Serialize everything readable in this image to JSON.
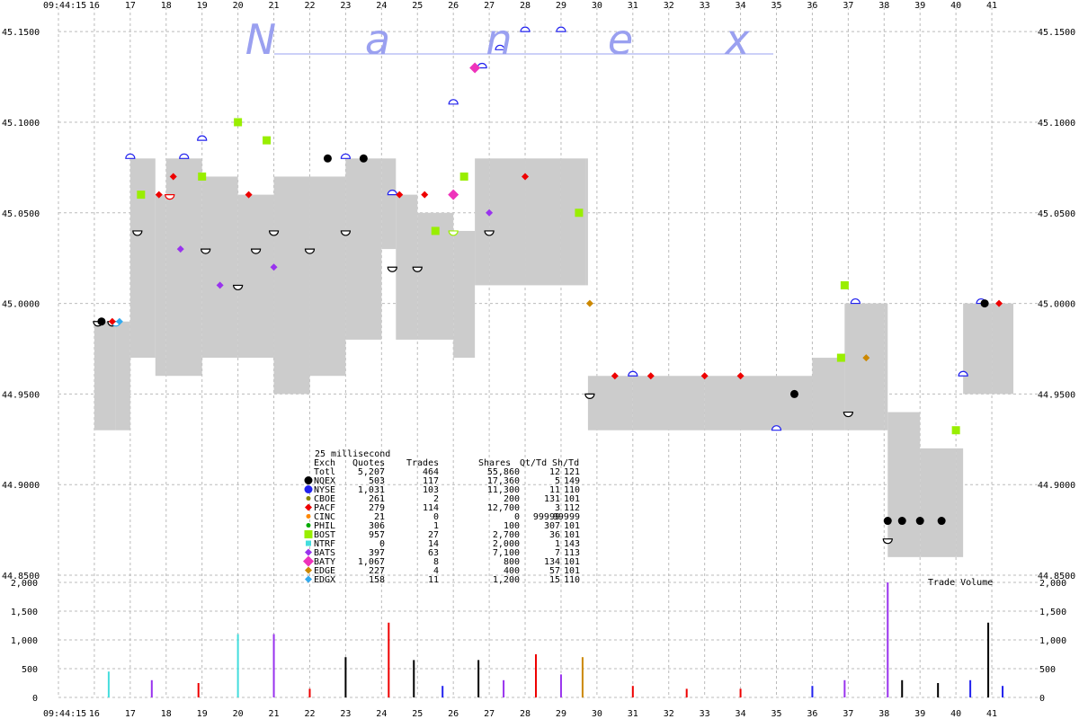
{
  "chart_data": {
    "type": "scatter",
    "brand": "Nanex",
    "brand_letters": [
      "N",
      "a",
      "n",
      "e",
      "x"
    ],
    "start_time": "09:44:15",
    "time_ticks": [
      "16",
      "17",
      "18",
      "19",
      "20",
      "21",
      "22",
      "23",
      "24",
      "25",
      "26",
      "27",
      "28",
      "29",
      "30",
      "31",
      "32",
      "33",
      "34",
      "35",
      "36",
      "37",
      "38",
      "39",
      "40",
      "41"
    ],
    "y_ticks": [
      "45.1500",
      "45.1000",
      "45.0500",
      "45.0000",
      "44.9500",
      "44.9000",
      "44.8500"
    ],
    "ylim": [
      44.85,
      45.16
    ],
    "volume_ticks": [
      "2,000",
      "1,500",
      "1,000",
      "500",
      "0"
    ],
    "volume_ylim": [
      0,
      2000
    ],
    "volume_label": "Trade Volume",
    "grid": true,
    "stats_table": {
      "interval": "25 millisecond",
      "headers": [
        "Exch",
        "Quotes",
        "Trades",
        "Shares",
        "Qt/Td",
        "Sh/Td"
      ],
      "total": {
        "exch": "Totl",
        "quotes": "5,207",
        "trades": "464",
        "shares": "55,860",
        "qt_td": "12",
        "sh_td": "121"
      },
      "rows": [
        {
          "exch": "NQEX",
          "quotes": "503",
          "trades": "117",
          "shares": "17,360",
          "qt_td": "5",
          "sh_td": "149",
          "color": "#000000",
          "marker": "circle-lg"
        },
        {
          "exch": "NYSE",
          "quotes": "1,031",
          "trades": "103",
          "shares": "11,300",
          "qt_td": "11",
          "sh_td": "110",
          "color": "#2222ee",
          "marker": "circle-lg"
        },
        {
          "exch": "CBOE",
          "quotes": "261",
          "trades": "2",
          "shares": "200",
          "qt_td": "131",
          "sh_td": "101",
          "color": "#888800",
          "marker": "dot"
        },
        {
          "exch": "PACF",
          "quotes": "279",
          "trades": "114",
          "shares": "12,700",
          "qt_td": "3",
          "sh_td": "112",
          "color": "#ee0000",
          "marker": "diamond"
        },
        {
          "exch": "CINC",
          "quotes": "21",
          "trades": "0",
          "shares": "0",
          "qt_td": "99999",
          "sh_td": "99999",
          "color": "#ff8800",
          "marker": "dot"
        },
        {
          "exch": "PHIL",
          "quotes": "306",
          "trades": "1",
          "shares": "100",
          "qt_td": "307",
          "sh_td": "101",
          "color": "#00aa00",
          "marker": "dot"
        },
        {
          "exch": "BOST",
          "quotes": "957",
          "trades": "27",
          "shares": "2,700",
          "qt_td": "36",
          "sh_td": "101",
          "color": "#99ee00",
          "marker": "square"
        },
        {
          "exch": "NTRF",
          "quotes": "0",
          "trades": "14",
          "shares": "2,000",
          "qt_td": "1",
          "sh_td": "143",
          "color": "#44dddd",
          "marker": "square-sm"
        },
        {
          "exch": "BATS",
          "quotes": "397",
          "trades": "63",
          "shares": "7,100",
          "qt_td": "7",
          "sh_td": "113",
          "color": "#9933ee",
          "marker": "diamond"
        },
        {
          "exch": "BATY",
          "quotes": "1,067",
          "trades": "8",
          "shares": "800",
          "qt_td": "134",
          "sh_td": "101",
          "color": "#ee33bb",
          "marker": "diamond-lg"
        },
        {
          "exch": "EDGE",
          "quotes": "227",
          "trades": "4",
          "shares": "400",
          "qt_td": "57",
          "sh_td": "101",
          "color": "#cc8800",
          "marker": "diamond"
        },
        {
          "exch": "EDGX",
          "quotes": "158",
          "trades": "11",
          "shares": "1,200",
          "qt_td": "15",
          "sh_td": "110",
          "color": "#33aaee",
          "marker": "diamond"
        }
      ]
    },
    "nbbo_band": [
      [
        16.0,
        44.93,
        44.99
      ],
      [
        16.6,
        44.93,
        44.99
      ],
      [
        17.0,
        44.97,
        45.08
      ],
      [
        17.7,
        44.96,
        45.06
      ],
      [
        18.0,
        44.96,
        45.08
      ],
      [
        19.0,
        44.97,
        45.07
      ],
      [
        20.0,
        44.97,
        45.06
      ],
      [
        21.0,
        44.95,
        45.07
      ],
      [
        22.0,
        44.96,
        45.07
      ],
      [
        23.0,
        44.98,
        45.08
      ],
      [
        24.0,
        45.03,
        45.08
      ],
      [
        24.4,
        44.98,
        45.06
      ],
      [
        25.0,
        44.98,
        45.05
      ],
      [
        26.0,
        44.97,
        45.04
      ],
      [
        26.6,
        45.01,
        45.08
      ],
      [
        27.0,
        45.01,
        45.08
      ],
      [
        28.0,
        45.01,
        45.08
      ],
      [
        29.0,
        45.01,
        45.08
      ],
      [
        29.7,
        45.01,
        45.08
      ],
      [
        29.75,
        44.93,
        44.96
      ],
      [
        31.0,
        44.93,
        44.96
      ],
      [
        33.0,
        44.93,
        44.96
      ],
      [
        35.0,
        44.93,
        44.96
      ],
      [
        36.0,
        44.93,
        44.97
      ],
      [
        36.9,
        44.93,
        45.0
      ],
      [
        38.0,
        44.93,
        45.0
      ],
      [
        38.1,
        44.86,
        44.94
      ],
      [
        39.0,
        44.86,
        44.92
      ],
      [
        40.0,
        44.86,
        44.92
      ],
      [
        40.2,
        44.95,
        45.0
      ],
      [
        41.0,
        44.95,
        45.0
      ],
      [
        41.6,
        44.91,
        45.0
      ]
    ],
    "bids": [
      {
        "t": 16.1,
        "p": 44.99,
        "ex": "NQEX"
      },
      {
        "t": 16.5,
        "p": 44.99,
        "ex": "NQEX"
      },
      {
        "t": 16.6,
        "p": 44.99,
        "ex": "EDGX"
      },
      {
        "t": 17.2,
        "p": 45.04,
        "ex": "NQEX"
      },
      {
        "t": 18.1,
        "p": 45.06,
        "ex": "PACF"
      },
      {
        "t": 19.1,
        "p": 45.03,
        "ex": "NQEX"
      },
      {
        "t": 20.0,
        "p": 45.01,
        "ex": "NQEX"
      },
      {
        "t": 20.5,
        "p": 45.03,
        "ex": "NQEX"
      },
      {
        "t": 21.0,
        "p": 45.04,
        "ex": "NQEX"
      },
      {
        "t": 22.0,
        "p": 45.03,
        "ex": "NQEX"
      },
      {
        "t": 23.0,
        "p": 45.04,
        "ex": "NQEX"
      },
      {
        "t": 24.3,
        "p": 45.02,
        "ex": "NQEX"
      },
      {
        "t": 25.0,
        "p": 45.02,
        "ex": "NQEX"
      },
      {
        "t": 26.0,
        "p": 45.04,
        "ex": "BOST"
      },
      {
        "t": 27.0,
        "p": 45.04,
        "ex": "NQEX"
      },
      {
        "t": 29.8,
        "p": 44.95,
        "ex": "NQEX"
      },
      {
        "t": 37.0,
        "p": 44.94,
        "ex": "NQEX"
      },
      {
        "t": 38.1,
        "p": 44.87,
        "ex": "NQEX"
      }
    ],
    "asks": [
      {
        "t": 17.0,
        "p": 45.08,
        "ex": "NYSE"
      },
      {
        "t": 18.5,
        "p": 45.08,
        "ex": "NYSE"
      },
      {
        "t": 19.0,
        "p": 45.09,
        "ex": "NYSE"
      },
      {
        "t": 23.0,
        "p": 45.08,
        "ex": "NYSE"
      },
      {
        "t": 24.3,
        "p": 45.06,
        "ex": "NYSE"
      },
      {
        "t": 26.0,
        "p": 45.11,
        "ex": "NYSE"
      },
      {
        "t": 26.8,
        "p": 45.13,
        "ex": "NYSE"
      },
      {
        "t": 27.3,
        "p": 45.14,
        "ex": "NYSE"
      },
      {
        "t": 28.0,
        "p": 45.15,
        "ex": "NYSE"
      },
      {
        "t": 29.0,
        "p": 45.15,
        "ex": "NYSE"
      },
      {
        "t": 31.0,
        "p": 44.96,
        "ex": "NYSE"
      },
      {
        "t": 35.0,
        "p": 44.93,
        "ex": "NYSE"
      },
      {
        "t": 37.2,
        "p": 45.0,
        "ex": "NYSE"
      },
      {
        "t": 40.2,
        "p": 44.96,
        "ex": "NYSE"
      },
      {
        "t": 40.7,
        "p": 45.0,
        "ex": "NYSE"
      }
    ],
    "trades": [
      {
        "t": 16.2,
        "p": 44.99,
        "ex": "NQEX"
      },
      {
        "t": 16.5,
        "p": 44.99,
        "ex": "PACF"
      },
      {
        "t": 16.7,
        "p": 44.99,
        "ex": "EDGX"
      },
      {
        "t": 17.3,
        "p": 45.06,
        "ex": "BOST"
      },
      {
        "t": 17.8,
        "p": 45.06,
        "ex": "PACF"
      },
      {
        "t": 18.2,
        "p": 45.07,
        "ex": "PACF"
      },
      {
        "t": 18.4,
        "p": 45.03,
        "ex": "BATS"
      },
      {
        "t": 19.0,
        "p": 45.07,
        "ex": "BOST"
      },
      {
        "t": 19.5,
        "p": 45.01,
        "ex": "BATS"
      },
      {
        "t": 20.0,
        "p": 45.1,
        "ex": "BOST"
      },
      {
        "t": 20.3,
        "p": 45.06,
        "ex": "PACF"
      },
      {
        "t": 20.8,
        "p": 45.09,
        "ex": "BOST"
      },
      {
        "t": 21.0,
        "p": 45.02,
        "ex": "BATS"
      },
      {
        "t": 22.5,
        "p": 45.08,
        "ex": "NQEX"
      },
      {
        "t": 23.5,
        "p": 45.08,
        "ex": "NQEX"
      },
      {
        "t": 24.5,
        "p": 45.06,
        "ex": "PACF"
      },
      {
        "t": 25.2,
        "p": 45.06,
        "ex": "PACF"
      },
      {
        "t": 25.5,
        "p": 45.04,
        "ex": "BOST"
      },
      {
        "t": 26.0,
        "p": 45.06,
        "ex": "BATY"
      },
      {
        "t": 26.3,
        "p": 45.07,
        "ex": "BOST"
      },
      {
        "t": 26.6,
        "p": 45.13,
        "ex": "BATY"
      },
      {
        "t": 27.0,
        "p": 45.05,
        "ex": "BATS"
      },
      {
        "t": 28.0,
        "p": 45.07,
        "ex": "PACF"
      },
      {
        "t": 29.5,
        "p": 45.05,
        "ex": "BOST"
      },
      {
        "t": 29.8,
        "p": 45.0,
        "ex": "EDGE"
      },
      {
        "t": 30.5,
        "p": 44.96,
        "ex": "PACF"
      },
      {
        "t": 31.5,
        "p": 44.96,
        "ex": "PACF"
      },
      {
        "t": 33.0,
        "p": 44.96,
        "ex": "PACF"
      },
      {
        "t": 34.0,
        "p": 44.96,
        "ex": "PACF"
      },
      {
        "t": 35.5,
        "p": 44.95,
        "ex": "NQEX"
      },
      {
        "t": 36.8,
        "p": 44.97,
        "ex": "BOST"
      },
      {
        "t": 36.9,
        "p": 45.01,
        "ex": "BOST"
      },
      {
        "t": 37.5,
        "p": 44.97,
        "ex": "EDGE"
      },
      {
        "t": 38.1,
        "p": 44.88,
        "ex": "NQEX"
      },
      {
        "t": 38.5,
        "p": 44.88,
        "ex": "NQEX"
      },
      {
        "t": 39.0,
        "p": 44.88,
        "ex": "NQEX"
      },
      {
        "t": 39.6,
        "p": 44.88,
        "ex": "NQEX"
      },
      {
        "t": 40.0,
        "p": 44.93,
        "ex": "BOST"
      },
      {
        "t": 40.8,
        "p": 45.0,
        "ex": "NQEX"
      },
      {
        "t": 41.2,
        "p": 45.0,
        "ex": "PACF"
      }
    ],
    "volume": [
      {
        "t": 16.4,
        "v": 450,
        "ex": "NTRF"
      },
      {
        "t": 17.6,
        "v": 300,
        "ex": "BATS"
      },
      {
        "t": 18.9,
        "v": 250,
        "ex": "PACF"
      },
      {
        "t": 20.0,
        "v": 1100,
        "ex": "NTRF"
      },
      {
        "t": 21.0,
        "v": 1100,
        "ex": "BATS"
      },
      {
        "t": 22.0,
        "v": 150,
        "ex": "PACF"
      },
      {
        "t": 23.0,
        "v": 700,
        "ex": "NQEX"
      },
      {
        "t": 24.2,
        "v": 1300,
        "ex": "PACF"
      },
      {
        "t": 24.9,
        "v": 650,
        "ex": "NQEX"
      },
      {
        "t": 25.7,
        "v": 200,
        "ex": "NYSE"
      },
      {
        "t": 26.7,
        "v": 650,
        "ex": "NQEX"
      },
      {
        "t": 27.4,
        "v": 300,
        "ex": "BATS"
      },
      {
        "t": 28.3,
        "v": 750,
        "ex": "PACF"
      },
      {
        "t": 29.0,
        "v": 400,
        "ex": "BATS"
      },
      {
        "t": 29.6,
        "v": 700,
        "ex": "EDGE"
      },
      {
        "t": 31.0,
        "v": 200,
        "ex": "PACF"
      },
      {
        "t": 32.5,
        "v": 150,
        "ex": "PACF"
      },
      {
        "t": 34.0,
        "v": 150,
        "ex": "PACF"
      },
      {
        "t": 36.0,
        "v": 200,
        "ex": "NYSE"
      },
      {
        "t": 36.9,
        "v": 300,
        "ex": "BATS"
      },
      {
        "t": 38.1,
        "v": 2000,
        "ex": "BATS"
      },
      {
        "t": 38.5,
        "v": 300,
        "ex": "NQEX"
      },
      {
        "t": 39.5,
        "v": 250,
        "ex": "NQEX"
      },
      {
        "t": 40.4,
        "v": 300,
        "ex": "NYSE"
      },
      {
        "t": 40.9,
        "v": 1300,
        "ex": "NQEX"
      },
      {
        "t": 41.3,
        "v": 200,
        "ex": "NYSE"
      }
    ]
  }
}
